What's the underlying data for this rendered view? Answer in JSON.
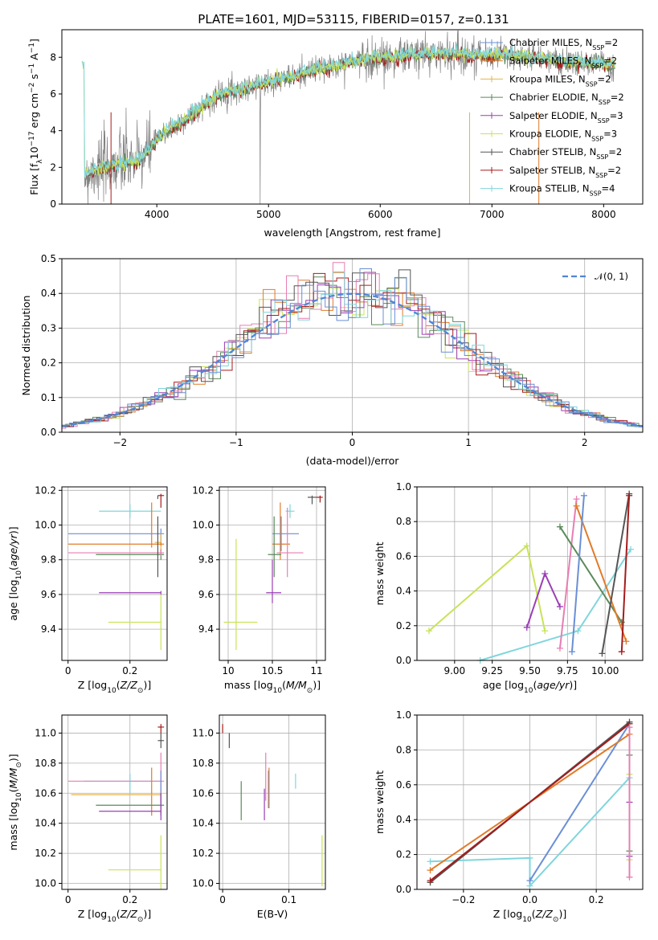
{
  "figure_title": "PLATE=1601, MJD=53115, FIBERID=0157, z=0.131",
  "colors": {
    "Chabrier MILES": "#6a8fd6",
    "Salpeter MILES": "#e07b2a",
    "Kroupa MILES": "#e6b34a",
    "Chabrier ELODIE": "#5a8a5a",
    "Salpeter ELODIE": "#9b3fb5",
    "Kroupa ELODIE": "#c8e35a",
    "Chabrier STELIB": "#555555",
    "Salpeter STELIB": "#a51c1c",
    "Kroupa STELIB": "#7fd6dc",
    "Pink": "#e67fb3",
    "Normal": "#4f86d6",
    "data": "#808080"
  },
  "chart_data": [
    {
      "id": "spectrum",
      "type": "line",
      "title": "PLATE=1601, MJD=53115, FIBERID=0157, z=0.131",
      "xlabel": "wavelength [Angstrom, rest frame]",
      "ylabel_parts": [
        "Flux [f",
        "λ",
        "10",
        "−17",
        " erg cm",
        "−2",
        " s",
        "−1",
        " A",
        "−1",
        "]"
      ],
      "xlim": [
        3150,
        8350
      ],
      "ylim": [
        0,
        9.5
      ],
      "xticks": [
        4000,
        5000,
        6000,
        7000,
        8000
      ],
      "yticks": [
        0,
        2,
        4,
        6,
        8
      ],
      "continuum": {
        "x": [
          3350,
          3450,
          3550,
          3650,
          3750,
          3850,
          3900,
          3950,
          4000,
          4100,
          4200,
          4300,
          4400,
          4500,
          4600,
          4700,
          4800,
          4900,
          5000,
          5100,
          5200,
          5300,
          5400,
          5500,
          5600,
          5700,
          5800,
          5900,
          6000,
          6100,
          6200,
          6300,
          6400,
          6500,
          6600,
          6700,
          6800,
          6900,
          7000,
          7100,
          7200,
          7300,
          7400,
          7500,
          7600,
          7700,
          7800,
          7900,
          8000,
          8100
        ],
        "y": [
          1.6,
          1.9,
          2.0,
          2.2,
          2.3,
          2.4,
          2.8,
          3.1,
          3.5,
          4.0,
          4.4,
          4.8,
          5.3,
          5.7,
          6.1,
          6.2,
          6.3,
          6.5,
          6.7,
          6.8,
          6.9,
          7.1,
          7.3,
          7.4,
          7.5,
          7.7,
          7.8,
          7.9,
          8.0,
          8.0,
          8.1,
          8.1,
          8.2,
          8.2,
          8.2,
          8.2,
          8.1,
          8.1,
          8.1,
          8.2,
          8.1,
          8.1,
          7.9,
          7.9,
          7.8,
          7.7,
          7.7,
          7.7,
          7.6,
          7.6
        ]
      },
      "legend": [
        {
          "label": "Chabrier MILES",
          "nssp": "2"
        },
        {
          "label": "Salpeter MILES",
          "nssp": "2"
        },
        {
          "label": "Kroupa MILES",
          "nssp": "2"
        },
        {
          "label": "Chabrier ELODIE",
          "nssp": "2"
        },
        {
          "label": "Salpeter ELODIE",
          "nssp": "3"
        },
        {
          "label": "Kroupa ELODIE",
          "nssp": "3"
        },
        {
          "label": "Chabrier STELIB",
          "nssp": "2"
        },
        {
          "label": "Salpeter STELIB",
          "nssp": "2"
        },
        {
          "label": "Kroupa STELIB",
          "nssp": "4"
        }
      ],
      "legend_placement": "upper right"
    },
    {
      "id": "residuals",
      "type": "line",
      "xlabel": "(data-model)/error",
      "ylabel": "Normed distribution",
      "xlim": [
        -2.5,
        2.5
      ],
      "ylim": [
        0,
        0.5
      ],
      "xticks": [
        -2,
        -1,
        0,
        1,
        2
      ],
      "xtick_labels": [
        "−2",
        "−1",
        "0",
        "1",
        "2"
      ],
      "yticks": [
        0.0,
        0.1,
        0.2,
        0.3,
        0.4,
        0.5
      ],
      "ytick_labels": [
        "0.0",
        "0.1",
        "0.2",
        "0.3",
        "0.4",
        "0.5"
      ],
      "grid": true,
      "bin_width": 0.1,
      "normal_label": "𝒩(0, 1)",
      "legend_placement": "upper right"
    },
    {
      "id": "age_vs_Z",
      "type": "scatter",
      "xlabel": "Z [log10(Z/Z⊙)]",
      "ylabel": "age  [log10(age/yr)]",
      "xlim": [
        -0.02,
        0.32
      ],
      "ylim": [
        9.22,
        10.22
      ],
      "xticks": [
        0.0,
        0.2
      ],
      "yticks": [
        9.4,
        9.6,
        9.8,
        10.0,
        10.2
      ],
      "grid": true,
      "points": [
        {
          "series": "Kroupa STELIB",
          "x": 0.2,
          "y": 10.08,
          "xerr": [
            0.1,
            0.3
          ],
          "yerr": [
            10.04,
            10.12
          ]
        },
        {
          "series": "Salpeter MILES",
          "x": 0.27,
          "y": 10.05,
          "xerr": [
            0.27,
            0.27
          ],
          "yerr": [
            9.87,
            10.13
          ]
        },
        {
          "series": "Chabrier MILES",
          "x": 0.3,
          "y": 9.95,
          "xerr": [
            0.0,
            0.31
          ],
          "yerr": [
            9.9,
            9.98
          ]
        },
        {
          "series": "Kroupa MILES",
          "x": 0.3,
          "y": 9.9,
          "xerr": [
            0.28,
            0.3
          ],
          "yerr": [
            9.85,
            9.95
          ]
        },
        {
          "series": "Salpeter MILES",
          "x": 0.3,
          "y": 9.89,
          "xerr": [
            0.0,
            0.31
          ],
          "yerr": [
            9.88,
            9.9
          ]
        },
        {
          "series": "Chabrier ELODIE",
          "x": 0.3,
          "y": 9.83,
          "xerr": [
            0.09,
            0.31
          ],
          "yerr": [
            9.8,
            9.86
          ]
        },
        {
          "series": "Pink",
          "x": 0.3,
          "y": 9.84,
          "xerr": [
            0.0,
            0.31
          ],
          "yerr": [
            9.82,
            9.86
          ]
        },
        {
          "series": "Chabrier STELIB",
          "x": 0.29,
          "y": 9.83,
          "xerr": [
            0.29,
            0.29
          ],
          "yerr": [
            9.7,
            10.05
          ]
        },
        {
          "series": "Salpeter ELODIE",
          "x": 0.3,
          "y": 9.61,
          "xerr": [
            0.1,
            0.3
          ],
          "yerr": [
            9.6,
            9.62
          ]
        },
        {
          "series": "Kroupa ELODIE",
          "x": 0.3,
          "y": 9.44,
          "xerr": [
            0.13,
            0.3
          ],
          "yerr": [
            9.28,
            9.6
          ]
        },
        {
          "series": "Salpeter STELIB",
          "x": 0.3,
          "y": 10.17,
          "xerr": [
            0.29,
            0.31
          ],
          "yerr": [
            10.1,
            10.18
          ]
        },
        {
          "series": "Chabrier STELIB",
          "x": 0.29,
          "y": 10.16,
          "xerr": [
            0.29,
            0.29
          ],
          "yerr": [
            10.15,
            10.17
          ]
        }
      ]
    },
    {
      "id": "age_vs_mass",
      "type": "scatter",
      "xlabel": "mass [log10(M/M⊙)]",
      "xlim": [
        9.9,
        11.1
      ],
      "ylim": [
        9.22,
        10.22
      ],
      "xticks": [
        10.0,
        10.5,
        11.0
      ],
      "yticks": [
        9.4,
        9.6,
        9.8,
        10.0,
        10.2
      ],
      "grid": true,
      "points": [
        {
          "series": "Chabrier STELIB",
          "x": 10.95,
          "y": 10.16,
          "xerr": [
            10.9,
            11.0
          ],
          "yerr": [
            10.12,
            10.17
          ]
        },
        {
          "series": "Salpeter STELIB",
          "x": 11.04,
          "y": 10.16,
          "xerr": [
            11.0,
            11.07
          ],
          "yerr": [
            10.13,
            10.17
          ]
        },
        {
          "series": "Kroupa STELIB",
          "x": 10.7,
          "y": 10.08,
          "xerr": [
            10.65,
            10.75
          ],
          "yerr": [
            10.04,
            10.12
          ]
        },
        {
          "series": "Salpeter MILES",
          "x": 10.59,
          "y": 9.89,
          "xerr": [
            10.5,
            10.7
          ],
          "yerr": [
            9.8,
            10.13
          ]
        },
        {
          "series": "Chabrier MILES",
          "x": 10.6,
          "y": 9.95,
          "xerr": [
            10.5,
            10.8
          ],
          "yerr": [
            9.85,
            10.05
          ]
        },
        {
          "series": "Pink",
          "x": 10.67,
          "y": 9.84,
          "xerr": [
            10.55,
            10.85
          ],
          "yerr": [
            9.7,
            10.1
          ]
        },
        {
          "series": "Chabrier ELODIE",
          "x": 10.52,
          "y": 9.83,
          "xerr": [
            10.45,
            10.6
          ],
          "yerr": [
            9.7,
            10.05
          ]
        },
        {
          "series": "Salpeter ELODIE",
          "x": 10.5,
          "y": 9.61,
          "xerr": [
            10.43,
            10.6
          ],
          "yerr": [
            9.55,
            9.8
          ]
        },
        {
          "series": "Kroupa ELODIE",
          "x": 10.09,
          "y": 9.44,
          "xerr": [
            9.95,
            10.33
          ],
          "yerr": [
            9.28,
            9.92
          ]
        }
      ]
    },
    {
      "id": "weight_vs_age",
      "type": "line",
      "xlabel": "age  [log10(age/yr)]",
      "ylabel": "mass weight",
      "xlim": [
        8.75,
        10.25
      ],
      "ylim": [
        0,
        1.0
      ],
      "xticks": [
        9.0,
        9.25,
        9.5,
        9.75,
        10.0
      ],
      "xtick_labels": [
        "9.00",
        "9.25",
        "9.50",
        "9.75",
        "10.00"
      ],
      "yticks": [
        0.0,
        0.2,
        0.4,
        0.6,
        0.8,
        1.0
      ],
      "grid": true,
      "series": [
        {
          "name": "Kroupa ELODIE",
          "x": [
            8.83,
            9.48,
            9.6
          ],
          "y": [
            0.17,
            0.66,
            0.17
          ]
        },
        {
          "name": "Salpeter ELODIE",
          "x": [
            9.48,
            9.6,
            9.7
          ],
          "y": [
            0.19,
            0.5,
            0.31
          ]
        },
        {
          "name": "Kroupa STELIB",
          "x": [
            9.17,
            9.82,
            10.17
          ],
          "y": [
            0.0,
            0.17,
            0.64
          ]
        },
        {
          "name": "Pink",
          "x": [
            9.7,
            9.81
          ],
          "y": [
            0.07,
            0.93
          ]
        },
        {
          "name": "Chabrier ELODIE",
          "x": [
            9.7,
            10.11
          ],
          "y": [
            0.77,
            0.22
          ]
        },
        {
          "name": "Salpeter MILES",
          "x": [
            9.81,
            10.14
          ],
          "y": [
            0.89,
            0.11
          ]
        },
        {
          "name": "Chabrier MILES",
          "x": [
            9.78,
            9.86
          ],
          "y": [
            0.05,
            0.95
          ]
        },
        {
          "name": "Chabrier STELIB",
          "x": [
            9.98,
            10.16
          ],
          "y": [
            0.04,
            0.96
          ]
        },
        {
          "name": "Salpeter STELIB",
          "x": [
            10.11,
            10.16
          ],
          "y": [
            0.05,
            0.95
          ]
        }
      ]
    },
    {
      "id": "mass_vs_Z",
      "type": "scatter",
      "xlabel": "Z [log10(Z/Z⊙)]",
      "ylabel": "mass [log10(M/M⊙)]",
      "xlim": [
        -0.02,
        0.32
      ],
      "ylim": [
        9.96,
        11.12
      ],
      "xticks": [
        0.0,
        0.2
      ],
      "yticks": [
        10.0,
        10.2,
        10.4,
        10.6,
        10.8,
        11.0
      ],
      "grid": true,
      "points": [
        {
          "series": "Salpeter STELIB",
          "x": 0.3,
          "y": 11.04,
          "xerr": [
            0.29,
            0.31
          ],
          "yerr": [
            11.0,
            11.06
          ]
        },
        {
          "series": "Chabrier STELIB",
          "x": 0.3,
          "y": 10.95,
          "xerr": [
            0.29,
            0.31
          ],
          "yerr": [
            10.9,
            11.0
          ]
        },
        {
          "series": "Kroupa STELIB",
          "x": 0.2,
          "y": 10.68,
          "xerr": [
            0.05,
            0.3
          ],
          "yerr": [
            10.6,
            10.73
          ]
        },
        {
          "series": "Pink",
          "x": 0.3,
          "y": 10.68,
          "xerr": [
            0.0,
            0.31
          ],
          "yerr": [
            10.55,
            10.87
          ]
        },
        {
          "series": "Salpeter MILES",
          "x": 0.27,
          "y": 10.59,
          "xerr": [
            0.27,
            0.27
          ],
          "yerr": [
            10.45,
            10.77
          ]
        },
        {
          "series": "Kroupa MILES",
          "x": 0.3,
          "y": 10.59,
          "xerr": [
            0.01,
            0.3
          ],
          "yerr": [
            10.55,
            10.62
          ]
        },
        {
          "series": "Chabrier MILES",
          "x": 0.3,
          "y": 10.6,
          "xerr": [
            0.3,
            0.3
          ],
          "yerr": [
            10.5,
            10.75
          ]
        },
        {
          "series": "Chabrier ELODIE",
          "x": 0.3,
          "y": 10.52,
          "xerr": [
            0.09,
            0.31
          ],
          "yerr": [
            10.45,
            10.6
          ]
        },
        {
          "series": "Salpeter ELODIE",
          "x": 0.3,
          "y": 10.48,
          "xerr": [
            0.1,
            0.3
          ],
          "yerr": [
            10.42,
            10.6
          ]
        },
        {
          "series": "Kroupa ELODIE",
          "x": 0.3,
          "y": 10.09,
          "xerr": [
            0.13,
            0.3
          ],
          "yerr": [
            9.96,
            10.32
          ]
        }
      ]
    },
    {
      "id": "mass_vs_ebv",
      "type": "scatter",
      "xlabel": "E(B-V)",
      "xlim": [
        -0.005,
        0.155
      ],
      "ylim": [
        9.96,
        11.12
      ],
      "xticks": [
        0.0,
        0.1
      ],
      "yticks": [
        10.0,
        10.2,
        10.4,
        10.6,
        10.8,
        11.0
      ],
      "grid": true,
      "points": [
        {
          "series": "Salpeter STELIB",
          "x": 0.0,
          "y": 11.04,
          "yerr": [
            11.0,
            11.06
          ]
        },
        {
          "series": "Chabrier STELIB",
          "x": 0.01,
          "y": 10.95,
          "yerr": [
            10.9,
            11.0
          ]
        },
        {
          "series": "Chabrier ELODIE",
          "x": 0.028,
          "y": 10.52,
          "yerr": [
            10.42,
            10.68
          ]
        },
        {
          "series": "Salpeter ELODIE",
          "x": 0.063,
          "y": 10.48,
          "yerr": [
            10.42,
            10.63
          ]
        },
        {
          "series": "Pink",
          "x": 0.065,
          "y": 10.68,
          "yerr": [
            10.55,
            10.87
          ]
        },
        {
          "series": "Chabrier MILES",
          "x": 0.069,
          "y": 10.6,
          "yerr": [
            10.5,
            10.75
          ]
        },
        {
          "series": "Salpeter MILES",
          "x": 0.07,
          "y": 10.59,
          "yerr": [
            10.5,
            10.77
          ]
        },
        {
          "series": "Kroupa STELIB",
          "x": 0.11,
          "y": 10.68,
          "yerr": [
            10.63,
            10.73
          ]
        },
        {
          "series": "Kroupa ELODIE",
          "x": 0.15,
          "y": 10.09,
          "yerr": [
            9.98,
            10.32
          ]
        }
      ]
    },
    {
      "id": "weight_vs_Z",
      "type": "line",
      "xlabel": "Z [log10(Z/Z⊙)]",
      "ylabel": "mass weight",
      "xlim": [
        -0.34,
        0.34
      ],
      "ylim": [
        0,
        1.0
      ],
      "xticks": [
        -0.2,
        0.0,
        0.2
      ],
      "xtick_labels": [
        "−0.2",
        "0.0",
        "0.2"
      ],
      "yticks": [
        0.0,
        0.2,
        0.4,
        0.6,
        0.8,
        1.0
      ],
      "grid": true,
      "series": [
        {
          "name": "Kroupa STELIB",
          "x": [
            -0.3,
            0.0,
            0.0,
            0.3
          ],
          "y": [
            0.16,
            0.18,
            0.02,
            0.64
          ]
        },
        {
          "name": "Chabrier MILES",
          "x": [
            0.0,
            0.3
          ],
          "y": [
            0.05,
            0.95
          ]
        },
        {
          "name": "Salpeter MILES",
          "x": [
            -0.3,
            0.3
          ],
          "y": [
            0.11,
            0.89
          ]
        },
        {
          "name": "Chabrier STELIB",
          "x": [
            -0.3,
            0.3
          ],
          "y": [
            0.04,
            0.96
          ]
        },
        {
          "name": "Salpeter STELIB",
          "x": [
            -0.3,
            0.3
          ],
          "y": [
            0.05,
            0.95
          ]
        },
        {
          "name": "Chabrier ELODIE",
          "x": [
            0.3,
            0.3
          ],
          "y": [
            0.22,
            0.77
          ]
        },
        {
          "name": "Salpeter ELODIE",
          "x": [
            0.3,
            0.3
          ],
          "y": [
            0.19,
            0.5
          ]
        },
        {
          "name": "Kroupa ELODIE",
          "x": [
            0.3,
            0.3
          ],
          "y": [
            0.17,
            0.66
          ]
        },
        {
          "name": "Pink",
          "x": [
            0.3,
            0.3
          ],
          "y": [
            0.07,
            0.93
          ]
        }
      ]
    }
  ]
}
